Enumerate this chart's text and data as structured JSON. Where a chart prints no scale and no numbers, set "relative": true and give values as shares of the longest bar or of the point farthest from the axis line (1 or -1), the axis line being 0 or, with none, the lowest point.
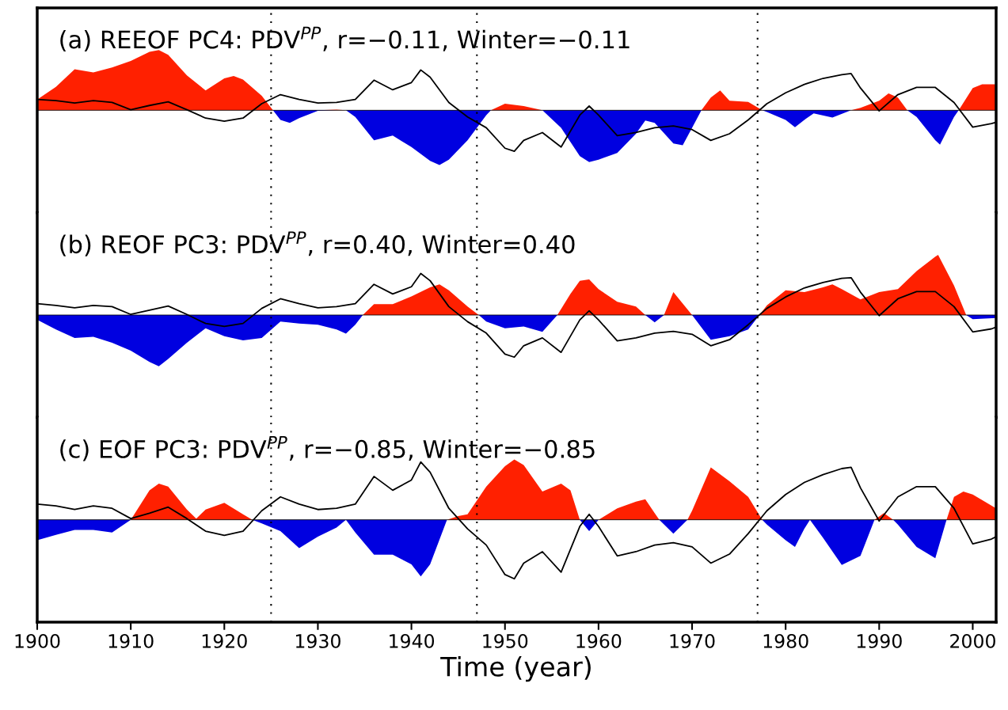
{
  "chart_data": [
    {
      "type": "line",
      "title": "(a) REEOF PC4: PDV$^{PP}$, r=−0.11, Winter=−0.11",
      "relative": true,
      "xlim": [
        1900,
        2002.5
      ],
      "xticks": [
        1900,
        1910,
        1920,
        1930,
        1940,
        1950,
        1960,
        1970,
        1980,
        1990,
        2000
      ],
      "tick_labels": false,
      "ref_lines": [
        {
          "axis": "x",
          "value": 1925,
          "color": "#000000",
          "line_style": "dotted"
        },
        {
          "axis": "x",
          "value": 1947,
          "color": "#000000",
          "line_style": "dotted"
        },
        {
          "axis": "x",
          "value": 1977,
          "color": "#000000",
          "line_style": "dotted"
        }
      ],
      "series": [
        {
          "type": "area",
          "color": "#ff2000",
          "x": [
            1900,
            1902,
            1904,
            1906,
            1908,
            1910,
            1912,
            1913,
            1914,
            1916,
            1918,
            1920,
            1921,
            1922,
            1924,
            1925.2,
            1926,
            1927,
            1928,
            1930,
            1932,
            1933,
            1934,
            1936,
            1938,
            1940,
            1942,
            1943,
            1944,
            1946,
            1948,
            1948.5,
            1950,
            1952,
            1954,
            1956,
            1958,
            1959,
            1960,
            1962,
            1964,
            1965,
            1966,
            1968,
            1969,
            1970,
            1971,
            1972,
            1973,
            1974,
            1976,
            1977.5,
            1978,
            1980,
            1981,
            1982,
            1983,
            1985,
            1987,
            1988,
            1990,
            1991,
            1992,
            1993,
            1994,
            1996,
            1996.5,
            1998,
            1998.5,
            2000,
            2001,
            2002.5
          ],
          "values": [
            0.18,
            0.39,
            0.68,
            0.63,
            0.71,
            0.82,
            0.97,
            1,
            0.92,
            0.58,
            0.33,
            0.53,
            0.57,
            0.51,
            0.24,
            0,
            0,
            0,
            0,
            0,
            0.01,
            0,
            0,
            0,
            0,
            0,
            0,
            0,
            0,
            0,
            0,
            0,
            0.11,
            0.07,
            0,
            0,
            0,
            0,
            0,
            0,
            0,
            0,
            0,
            0,
            0,
            0,
            0,
            0.21,
            0.33,
            0.16,
            0.14,
            0,
            0,
            0,
            0,
            0,
            0,
            0,
            0,
            0.04,
            0.16,
            0.28,
            0.21,
            0,
            0,
            0,
            0,
            0,
            0,
            0.37,
            0.43,
            0.43
          ]
        },
        {
          "type": "area",
          "color": "#0000e0",
          "x": [
            1900,
            1902,
            1904,
            1906,
            1908,
            1910,
            1912,
            1913,
            1914,
            1916,
            1918,
            1920,
            1921,
            1922,
            1924,
            1925.2,
            1926,
            1927,
            1928,
            1930,
            1932,
            1933,
            1934,
            1936,
            1938,
            1940,
            1942,
            1943,
            1944,
            1946,
            1948,
            1948.5,
            1950,
            1952,
            1954,
            1956,
            1958,
            1959,
            1960,
            1962,
            1964,
            1965,
            1966,
            1968,
            1969,
            1970,
            1971,
            1972,
            1973,
            1974,
            1976,
            1977.5,
            1978,
            1980,
            1981,
            1982,
            1983,
            1985,
            1987,
            1988,
            1990,
            1991,
            1992,
            1993,
            1994,
            1996,
            1996.5,
            1998,
            1998.5,
            2000,
            2001,
            2002.5
          ],
          "values": [
            0,
            0,
            0,
            0,
            0,
            0,
            0,
            0,
            0,
            0,
            0,
            0,
            0,
            0,
            0,
            0,
            -0.16,
            -0.21,
            -0.13,
            -0.01,
            0,
            0,
            -0.11,
            -0.5,
            -0.42,
            -0.61,
            -0.84,
            -0.91,
            -0.82,
            -0.5,
            -0.08,
            0,
            0,
            0,
            0,
            -0.29,
            -0.76,
            -0.86,
            -0.82,
            -0.71,
            -0.39,
            -0.17,
            -0.21,
            -0.55,
            -0.58,
            -0.29,
            0,
            0,
            0,
            0,
            0,
            0,
            -0.03,
            -0.16,
            -0.28,
            -0.16,
            -0.05,
            -0.12,
            0,
            0,
            0,
            0,
            0,
            0,
            -0.11,
            -0.5,
            -0.57,
            -0.11,
            0,
            0,
            0,
            0
          ]
        },
        {
          "color": "#000000",
          "x": [
            1900,
            1902,
            1904,
            1906,
            1908,
            1910,
            1912,
            1914,
            1916,
            1918,
            1920,
            1922,
            1924,
            1926,
            1928,
            1930,
            1932,
            1934,
            1936,
            1938,
            1940,
            1941,
            1942,
            1944,
            1946,
            1948,
            1950,
            1951,
            1952,
            1954,
            1956,
            1958,
            1959,
            1960,
            1962,
            1964,
            1966,
            1968,
            1970,
            1972,
            1974,
            1976,
            1978,
            1980,
            1982,
            1984,
            1986,
            1987,
            1988,
            1990,
            1992,
            1994,
            1996,
            1998,
            2000,
            2002,
            2002.5
          ],
          "values": [
            0.18,
            0.16,
            0.12,
            0.16,
            0.13,
            0.01,
            0.08,
            0.14,
            0.01,
            -0.13,
            -0.18,
            -0.13,
            0.11,
            0.26,
            0.18,
            0.12,
            0.13,
            0.18,
            0.5,
            0.34,
            0.46,
            0.67,
            0.55,
            0.13,
            -0.11,
            -0.29,
            -0.63,
            -0.68,
            -0.5,
            -0.37,
            -0.61,
            -0.08,
            0.07,
            -0.08,
            -0.42,
            -0.37,
            -0.29,
            -0.26,
            -0.32,
            -0.5,
            -0.39,
            -0.16,
            0.11,
            0.29,
            0.43,
            0.53,
            0.59,
            0.61,
            0.37,
            -0.01,
            0.26,
            0.38,
            0.38,
            0.13,
            -0.28,
            -0.22,
            -0.2
          ]
        }
      ]
    },
    {
      "type": "line",
      "title": "(b) REOF PC3: PDV$^{PP}$, r=0.40, Winter=0.40",
      "relative": true,
      "xlim": [
        1900,
        2002.5
      ],
      "xticks": [
        1900,
        1910,
        1920,
        1930,
        1940,
        1950,
        1960,
        1970,
        1980,
        1990,
        2000
      ],
      "tick_labels": false,
      "ref_lines": [
        {
          "axis": "x",
          "value": 1925,
          "color": "#000000",
          "line_style": "dotted"
        },
        {
          "axis": "x",
          "value": 1947,
          "color": "#000000",
          "line_style": "dotted"
        },
        {
          "axis": "x",
          "value": 1977,
          "color": "#000000",
          "line_style": "dotted"
        }
      ],
      "series": [
        {
          "type": "area",
          "color": "#ff2000",
          "x": [
            1900,
            1902,
            1904,
            1906,
            1908,
            1910,
            1912,
            1913,
            1914,
            1916,
            1918,
            1920,
            1922,
            1924,
            1926,
            1928,
            1930,
            1932,
            1933,
            1934,
            1934.8,
            1936,
            1938,
            1940,
            1942,
            1943,
            1944,
            1946,
            1947.2,
            1948,
            1950,
            1952,
            1954,
            1955.6,
            1957,
            1958,
            1959,
            1960,
            1962,
            1964,
            1965,
            1966,
            1967,
            1968,
            1969,
            1970,
            1972,
            1974,
            1976,
            1977.2,
            1978,
            1980,
            1982,
            1984,
            1985,
            1986,
            1988,
            1990,
            1992,
            1994,
            1996,
            1996.3,
            1998,
            1999.3,
            2000,
            2002.5
          ],
          "values": [
            0,
            0,
            0,
            0,
            0,
            0,
            0,
            0,
            0,
            0,
            0,
            0,
            0,
            0,
            0,
            0,
            0,
            0,
            0,
            0,
            0,
            0.18,
            0.18,
            0.31,
            0.46,
            0.51,
            0.41,
            0.14,
            0,
            0,
            0,
            0,
            0,
            0,
            0.35,
            0.57,
            0.59,
            0.43,
            0.22,
            0.14,
            0,
            0,
            0,
            0.38,
            0.19,
            0,
            0,
            0,
            0,
            0,
            0.16,
            0.41,
            0.38,
            0.46,
            0.51,
            0.43,
            0.26,
            0.38,
            0.43,
            0.73,
            0.97,
            1,
            0.49,
            0,
            0,
            0
          ]
        },
        {
          "type": "area",
          "color": "#0000e0",
          "x": [
            1900,
            1902,
            1904,
            1906,
            1908,
            1910,
            1912,
            1913,
            1914,
            1916,
            1918,
            1920,
            1922,
            1924,
            1926,
            1928,
            1930,
            1932,
            1933,
            1934,
            1934.8,
            1936,
            1938,
            1940,
            1942,
            1943,
            1944,
            1946,
            1947.2,
            1948,
            1950,
            1952,
            1954,
            1955.6,
            1957,
            1958,
            1959,
            1960,
            1962,
            1964,
            1965,
            1966,
            1967,
            1968,
            1969,
            1970,
            1972,
            1974,
            1976,
            1977.2,
            1978,
            1980,
            1982,
            1984,
            1985,
            1986,
            1988,
            1990,
            1992,
            1994,
            1996,
            1996.3,
            1998,
            1999.3,
            2000,
            2002.5
          ],
          "values": [
            -0.08,
            -0.24,
            -0.38,
            -0.36,
            -0.46,
            -0.59,
            -0.78,
            -0.85,
            -0.73,
            -0.46,
            -0.22,
            -0.35,
            -0.42,
            -0.38,
            -0.11,
            -0.14,
            -0.16,
            -0.24,
            -0.31,
            -0.16,
            0,
            0,
            0,
            0,
            0,
            0,
            0,
            0,
            0,
            -0.11,
            -0.22,
            -0.19,
            -0.28,
            0,
            0,
            0,
            0,
            0,
            0,
            0,
            0,
            -0.12,
            0,
            0,
            0,
            0,
            -0.41,
            -0.35,
            -0.24,
            0,
            0,
            0,
            0,
            0,
            0,
            0,
            0,
            0,
            0,
            0,
            0,
            0,
            0,
            0,
            -0.07,
            -0.05
          ]
        },
        {
          "color": "#000000",
          "x": [
            1900,
            1902,
            1904,
            1906,
            1908,
            1910,
            1912,
            1914,
            1916,
            1918,
            1920,
            1922,
            1924,
            1926,
            1928,
            1930,
            1932,
            1934,
            1936,
            1938,
            1940,
            1941,
            1942,
            1944,
            1946,
            1948,
            1950,
            1951,
            1952,
            1954,
            1956,
            1958,
            1959,
            1960,
            1962,
            1964,
            1966,
            1968,
            1970,
            1972,
            1974,
            1976,
            1978,
            1980,
            1982,
            1984,
            1986,
            1987,
            1988,
            1990,
            1992,
            1994,
            1996,
            1998,
            2000,
            2002,
            2002.5
          ],
          "values": [
            0.19,
            0.16,
            0.12,
            0.16,
            0.14,
            0.01,
            0.08,
            0.15,
            0.01,
            -0.14,
            -0.19,
            -0.14,
            0.11,
            0.27,
            0.19,
            0.12,
            0.14,
            0.19,
            0.51,
            0.35,
            0.47,
            0.69,
            0.57,
            0.14,
            -0.11,
            -0.3,
            -0.65,
            -0.7,
            -0.51,
            -0.38,
            -0.62,
            -0.08,
            0.07,
            -0.08,
            -0.43,
            -0.38,
            -0.3,
            -0.27,
            -0.32,
            -0.51,
            -0.41,
            -0.16,
            0.11,
            0.3,
            0.45,
            0.54,
            0.61,
            0.62,
            0.38,
            -0.01,
            0.27,
            0.39,
            0.39,
            0.14,
            -0.28,
            -0.23,
            -0.2
          ]
        }
      ]
    },
    {
      "type": "line",
      "title": "(c) EOF PC3: PDV$^{PP}$, r=−0.85, Winter=−0.85",
      "xlabel": "Time (year)",
      "relative": true,
      "xlim": [
        1900,
        2002.5
      ],
      "xticks": [
        1900,
        1910,
        1920,
        1930,
        1940,
        1950,
        1960,
        1970,
        1980,
        1990,
        2000
      ],
      "tick_labels": "x",
      "ref_lines": [
        {
          "axis": "x",
          "value": 1925,
          "color": "#000000",
          "line_style": "dotted"
        },
        {
          "axis": "x",
          "value": 1947,
          "color": "#000000",
          "line_style": "dotted"
        },
        {
          "axis": "x",
          "value": 1977,
          "color": "#000000",
          "line_style": "dotted"
        }
      ],
      "series": [
        {
          "type": "area",
          "color": "#ff2000",
          "x": [
            1900,
            1902,
            1904,
            1906,
            1908,
            1910,
            1912,
            1913,
            1914,
            1916,
            1917,
            1918,
            1920,
            1922,
            1923,
            1924,
            1926,
            1928,
            1930,
            1932,
            1933,
            1934,
            1936,
            1938,
            1940,
            1941,
            1942,
            1943.8,
            1945,
            1946,
            1948,
            1950,
            1951,
            1952,
            1954,
            1956,
            1957,
            1958,
            1959,
            1960,
            1962,
            1964,
            1965,
            1966,
            1966.5,
            1968,
            1969.5,
            1970,
            1972,
            1974,
            1976,
            1977.5,
            1978,
            1980,
            1981,
            1982,
            1982.6,
            1984,
            1986,
            1988,
            1989.5,
            1990.5,
            1991.5,
            1992,
            1994,
            1996,
            1997.2,
            1998,
            1999,
            2000,
            2002.5
          ],
          "values": [
            0,
            0,
            0,
            0,
            0,
            0,
            0.49,
            0.6,
            0.55,
            0.17,
            0.02,
            0.17,
            0.28,
            0.09,
            0,
            0,
            0,
            0,
            0,
            0,
            0,
            0,
            0,
            0,
            0,
            0,
            0,
            0,
            0.06,
            0.09,
            0.55,
            0.89,
            1,
            0.91,
            0.47,
            0.6,
            0.49,
            0,
            0,
            0,
            0.19,
            0.3,
            0.34,
            0.11,
            0,
            0,
            0,
            0.15,
            0.87,
            0.64,
            0.38,
            0,
            0,
            0,
            0,
            0,
            0,
            0,
            0,
            0,
            0,
            0.11,
            0,
            0,
            0,
            0,
            0,
            0.38,
            0.47,
            0.42,
            0.19
          ]
        },
        {
          "type": "area",
          "color": "#0000e0",
          "x": [
            1900,
            1902,
            1904,
            1906,
            1908,
            1910,
            1912,
            1913,
            1914,
            1916,
            1917,
            1918,
            1920,
            1922,
            1923,
            1924,
            1926,
            1928,
            1930,
            1932,
            1933,
            1934,
            1936,
            1938,
            1940,
            1941,
            1942,
            1943.8,
            1945,
            1946,
            1948,
            1950,
            1951,
            1952,
            1954,
            1956,
            1957,
            1958,
            1959,
            1960,
            1962,
            1964,
            1965,
            1966,
            1966.5,
            1968,
            1969.5,
            1970,
            1972,
            1974,
            1976,
            1977.5,
            1978,
            1980,
            1981,
            1982,
            1982.6,
            1984,
            1986,
            1988,
            1989.5,
            1990.5,
            1991.5,
            1992,
            1994,
            1996,
            1997.2,
            1998,
            1999,
            2000,
            2002.5
          ],
          "values": [
            -0.34,
            -0.25,
            -0.17,
            -0.17,
            -0.21,
            0,
            0,
            0,
            0,
            0,
            0,
            0,
            0,
            0,
            0,
            -0.06,
            -0.19,
            -0.47,
            -0.28,
            -0.13,
            0,
            -0.21,
            -0.58,
            -0.58,
            -0.74,
            -0.94,
            -0.74,
            0,
            0,
            0,
            0,
            0,
            0,
            0,
            0,
            0,
            0,
            0,
            -0.19,
            0,
            0,
            0,
            0,
            0,
            0,
            -0.23,
            0,
            0,
            0,
            0,
            0,
            0,
            -0.08,
            -0.34,
            -0.45,
            -0.15,
            0,
            -0.3,
            -0.75,
            -0.6,
            0,
            0,
            0,
            -0.08,
            -0.45,
            -0.64,
            0,
            0,
            0,
            0,
            0
          ]
        },
        {
          "color": "#000000",
          "x": [
            1900,
            1902,
            1904,
            1906,
            1908,
            1910,
            1912,
            1914,
            1916,
            1918,
            1920,
            1922,
            1924,
            1926,
            1928,
            1930,
            1932,
            1934,
            1936,
            1938,
            1940,
            1941,
            1942,
            1944,
            1946,
            1948,
            1950,
            1951,
            1952,
            1954,
            1956,
            1958,
            1959,
            1960,
            1962,
            1964,
            1966,
            1968,
            1970,
            1972,
            1974,
            1976,
            1978,
            1980,
            1982,
            1984,
            1986,
            1987,
            1988,
            1990,
            1992,
            1994,
            1996,
            1998,
            2000,
            2002,
            2002.5
          ],
          "values": [
            0.26,
            0.23,
            0.17,
            0.23,
            0.19,
            0.02,
            0.11,
            0.21,
            0.02,
            -0.19,
            -0.26,
            -0.19,
            0.15,
            0.38,
            0.26,
            0.17,
            0.19,
            0.26,
            0.72,
            0.49,
            0.66,
            0.96,
            0.79,
            0.19,
            -0.15,
            -0.42,
            -0.91,
            -0.98,
            -0.72,
            -0.53,
            -0.87,
            -0.11,
            0.09,
            -0.11,
            -0.6,
            -0.53,
            -0.42,
            -0.38,
            -0.45,
            -0.72,
            -0.57,
            -0.23,
            0.15,
            0.42,
            0.62,
            0.75,
            0.85,
            0.87,
            0.53,
            -0.02,
            0.38,
            0.55,
            0.55,
            0.19,
            -0.4,
            -0.32,
            -0.28
          ]
        }
      ]
    }
  ]
}
